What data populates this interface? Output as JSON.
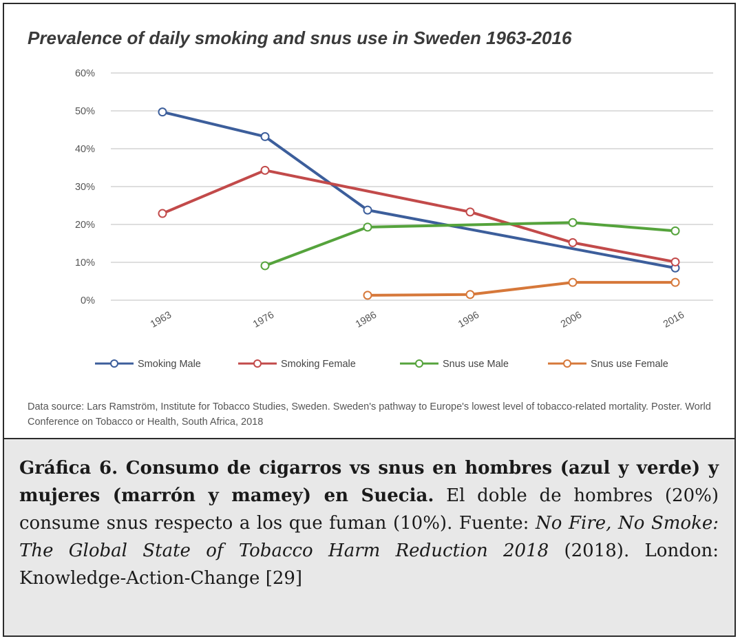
{
  "chart_data": {
    "type": "line",
    "title": "Prevalence of daily smoking and snus use in Sweden 1963-2016",
    "categories": [
      "1963",
      "1976",
      "1986",
      "1996",
      "2006",
      "2016"
    ],
    "y_ticks": [
      "0%",
      "10%",
      "20%",
      "30%",
      "40%",
      "50%",
      "60%"
    ],
    "ylim": [
      0,
      60
    ],
    "y_unit": "%",
    "grid": true,
    "legend_position": "bottom",
    "series": [
      {
        "name": "Smoking Male",
        "color": "#3c5e9b",
        "values": [
          49.7,
          43.2,
          23.8,
          null,
          null,
          8.5
        ]
      },
      {
        "name": "Smoking Female",
        "color": "#c24a4a",
        "values": [
          22.9,
          34.3,
          null,
          23.3,
          15.2,
          10.1
        ]
      },
      {
        "name": "Snus use Male",
        "color": "#55a33c",
        "values": [
          null,
          9.1,
          19.3,
          null,
          20.5,
          18.3
        ]
      },
      {
        "name": "Snus use Female",
        "color": "#d6783a",
        "values": [
          null,
          null,
          1.3,
          1.5,
          4.7,
          4.7
        ]
      }
    ]
  },
  "source_note": "Data source: Lars Ramström, Institute for Tobacco Studies, Sweden. Sweden's pathway to Europe's lowest level of tobacco-related mortality. Poster. World Conference on Tobacco or Health, South Africa, 2018",
  "caption": {
    "bold_part": "Gráfica 6. Consumo de cigarros vs snus en hombres (azul y verde) y mujeres (marrón y mamey) en Suecia.",
    "text_1": " El doble de hombres (20%) consume snus respecto a los que fuman (10%). Fuente: ",
    "italic_part": "No Fire, No Smoke: The Global State of Tobacco Harm Reduction 2018",
    "text_2": " (2018). London: Knowledge-Action-Change [29]"
  }
}
